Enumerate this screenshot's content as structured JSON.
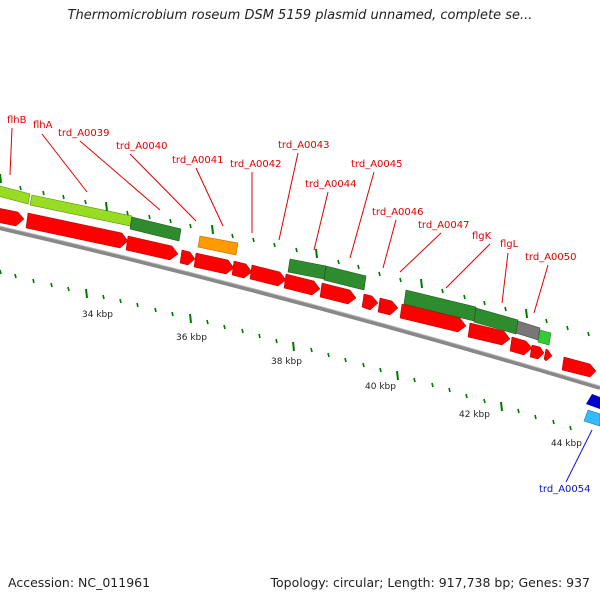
{
  "header": {
    "title": "Thermomicrobium roseum DSM 5159 plasmid unnamed, complete se..."
  },
  "footer": {
    "accession": "Accession: NC_011961",
    "summary": "Topology: circular; Length: 917,738 bp; Genes: 937"
  },
  "colors": {
    "cds_red": "#ff0000",
    "gene_dark_green": "#2e8b2e",
    "gene_lime": "#99dd22",
    "gene_orange": "#ff9a00",
    "gene_gray": "#777777",
    "gene_light_green": "#33cc33",
    "gene_blue": "#0000cc",
    "gene_cyan": "#33bbff",
    "backbone": "#888888",
    "tick_green": "#007700",
    "label_red": "#e00000",
    "label_blue": "#1010cc"
  },
  "ruler": {
    "labels": [
      "34 kbp",
      "36 kbp",
      "38 kbp",
      "40 kbp",
      "42 kbp",
      "44 kbp"
    ]
  },
  "gene_labels": [
    {
      "name": "flhB",
      "color": "red"
    },
    {
      "name": "flhA",
      "color": "red"
    },
    {
      "name": "trd_A0039",
      "color": "red"
    },
    {
      "name": "trd_A0040",
      "color": "red"
    },
    {
      "name": "trd_A0041",
      "color": "red"
    },
    {
      "name": "trd_A0042",
      "color": "red"
    },
    {
      "name": "trd_A0043",
      "color": "red"
    },
    {
      "name": "trd_A0044",
      "color": "red"
    },
    {
      "name": "trd_A0045",
      "color": "red"
    },
    {
      "name": "trd_A0046",
      "color": "red"
    },
    {
      "name": "trd_A0047",
      "color": "red"
    },
    {
      "name": "flgK",
      "color": "red"
    },
    {
      "name": "flgL",
      "color": "red"
    },
    {
      "name": "trd_A0050",
      "color": "red"
    },
    {
      "name": "trd_A0054",
      "color": "blue"
    }
  ]
}
